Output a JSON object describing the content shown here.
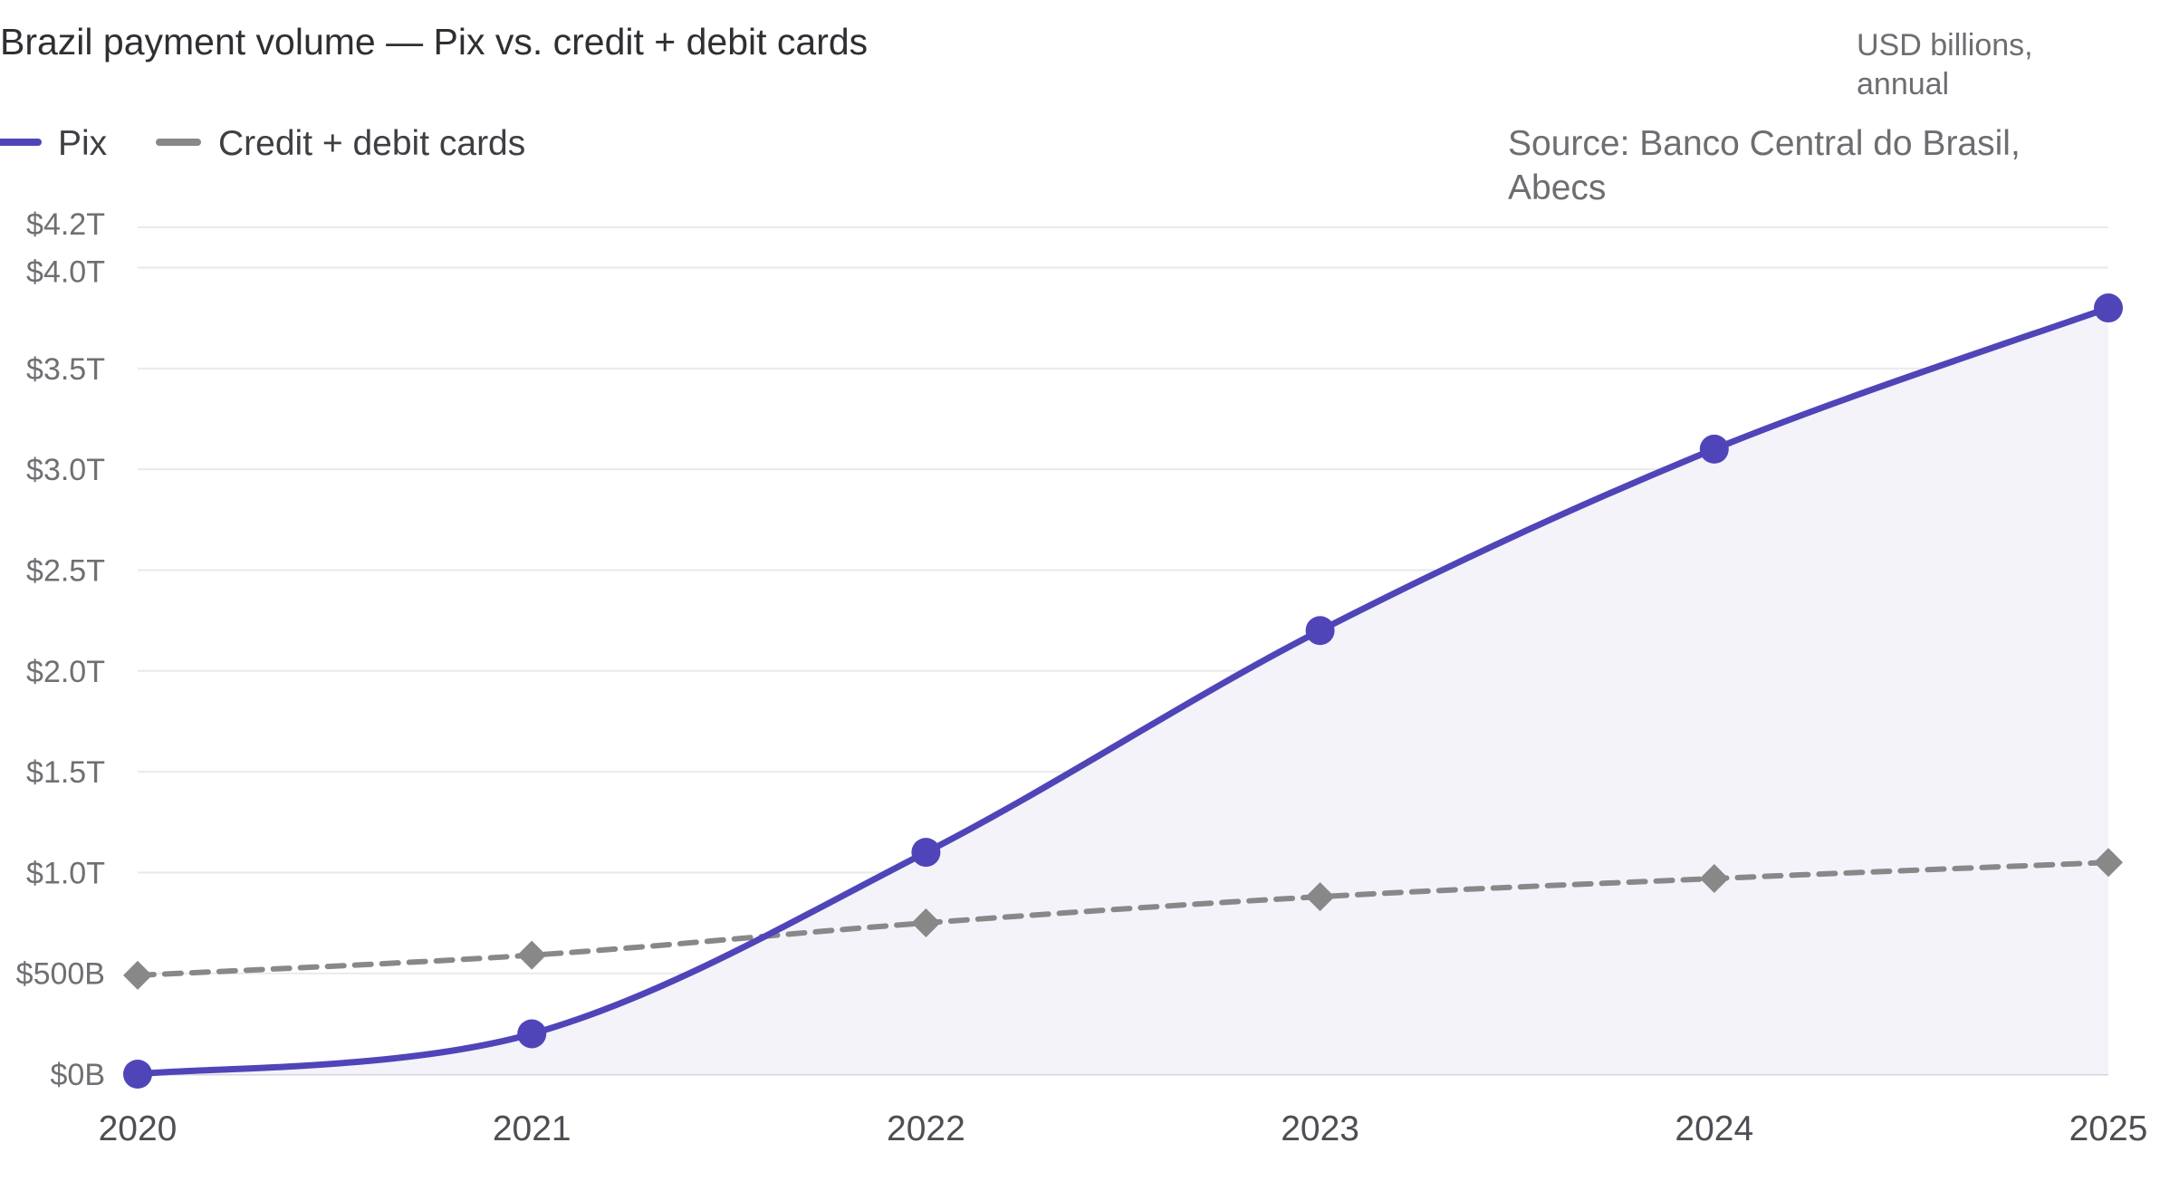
{
  "chart_data": {
    "type": "line",
    "title": "Brazil payment volume — Pix vs. credit + debit cards",
    "unit_note": [
      "USD billions,",
      "annual"
    ],
    "source": [
      "Source: Banco Central do Brasil,",
      "Abecs"
    ],
    "x": [
      2020,
      2021,
      2022,
      2023,
      2024,
      2025
    ],
    "x_tick_labels": [
      "2020",
      "2021",
      "2022",
      "2023",
      "2024",
      "2025"
    ],
    "y_tick_labels": [
      {
        "value": 0,
        "label": "$0B"
      },
      {
        "value": 500,
        "label": "$500B"
      },
      {
        "value": 1000,
        "label": "$1.0T"
      },
      {
        "value": 1500,
        "label": "$1.5T"
      },
      {
        "value": 2000,
        "label": "$2.0T"
      },
      {
        "value": 2500,
        "label": "$2.5T"
      },
      {
        "value": 3000,
        "label": "$3.0T"
      },
      {
        "value": 3500,
        "label": "$3.5T"
      },
      {
        "value": 4000,
        "label": "$4.0T"
      },
      {
        "value": 4200,
        "label": "$4.2T"
      }
    ],
    "ylim": [
      0,
      4200
    ],
    "grid": true,
    "legend_position": "top-left",
    "series": [
      {
        "name": "Pix",
        "values": [
          0,
          200,
          1100,
          2200,
          3100,
          3800
        ],
        "color": "#4f45b8",
        "style": "solid",
        "marker": "circle",
        "area_fill": "#f3f3f9"
      },
      {
        "name": "Credit + debit cards",
        "values": [
          490,
          590,
          750,
          880,
          970,
          1050
        ],
        "color": "#888888",
        "style": "dashed",
        "marker": "diamond"
      }
    ]
  }
}
